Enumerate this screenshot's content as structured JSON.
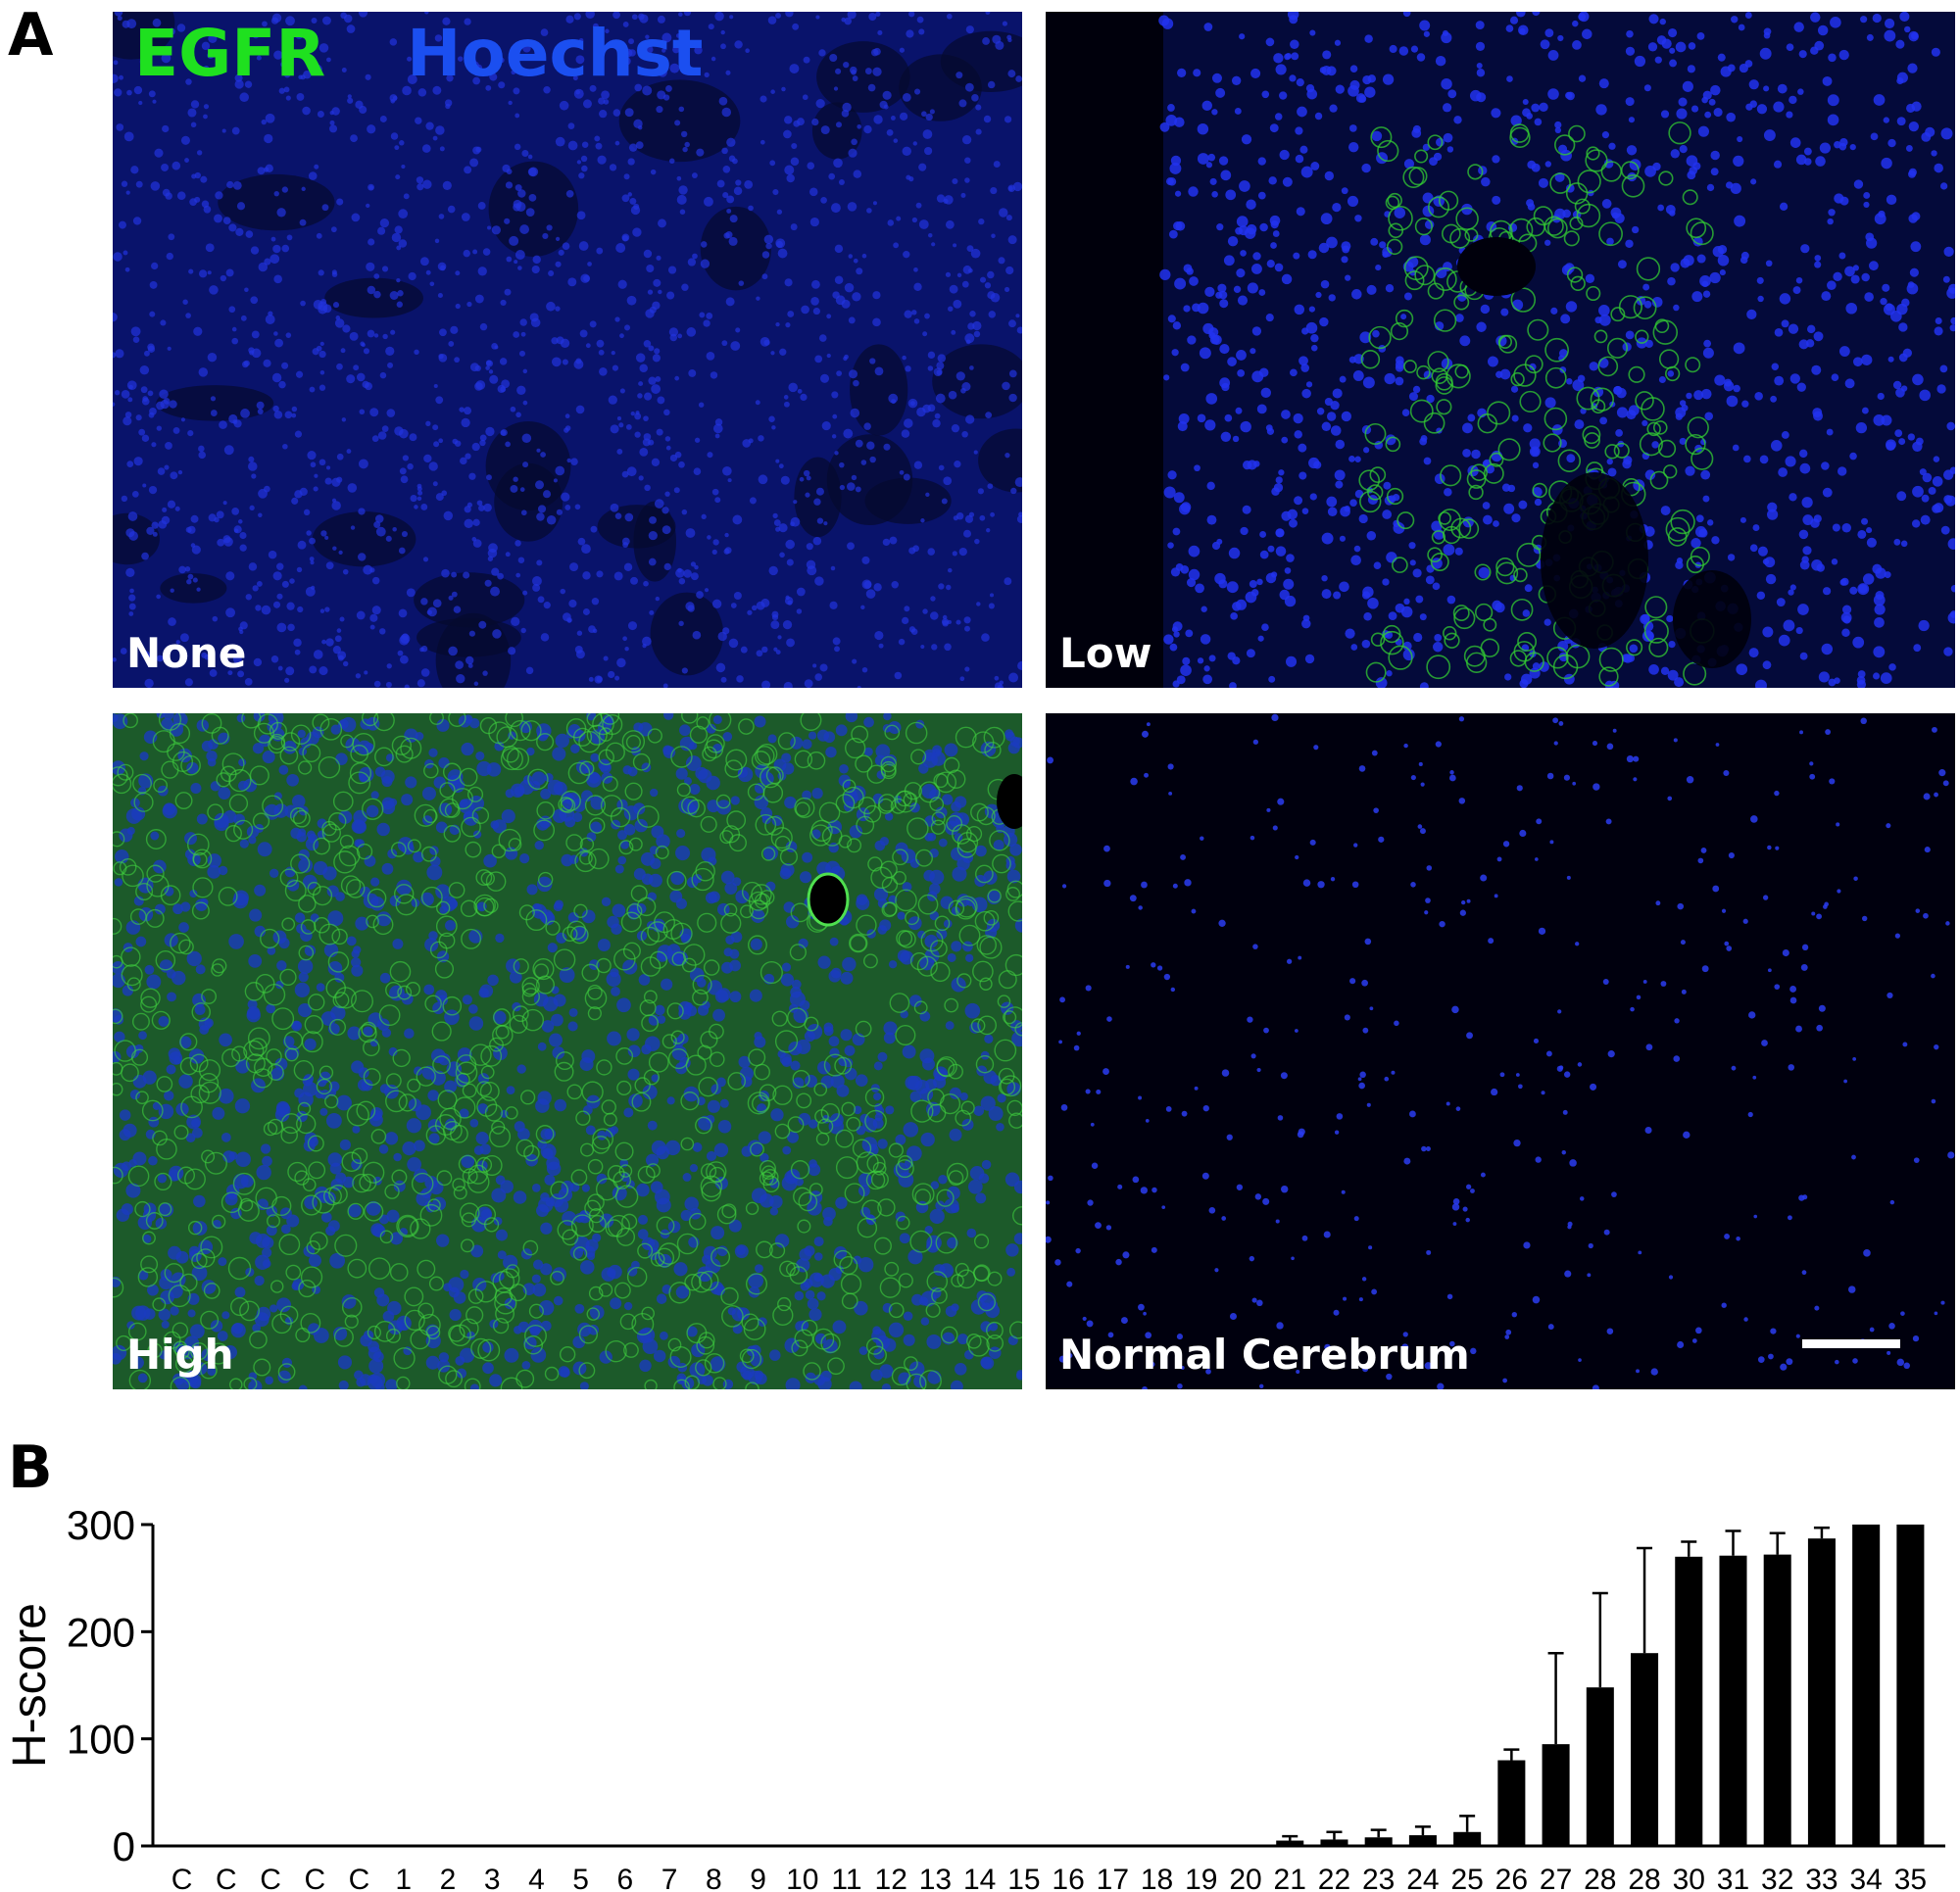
{
  "figure": {
    "panel_a_letter": "A",
    "panel_b_letter": "B",
    "stain_legend": [
      {
        "label": "EGFR",
        "color": "#1fe01f"
      },
      {
        "label": "Hoechst",
        "color": "#1b4ff0"
      }
    ],
    "micrographs": [
      {
        "label": "None",
        "egfr_level": "none"
      },
      {
        "label": "Low",
        "egfr_level": "low"
      },
      {
        "label": "High",
        "egfr_level": "high"
      },
      {
        "label": "Normal Cerebrum",
        "egfr_level": "sparse"
      }
    ]
  },
  "chart_data": {
    "type": "bar",
    "ylabel": "H-score",
    "xlabel": "",
    "ylim": [
      0,
      300
    ],
    "yticks": [
      0,
      100,
      200,
      300
    ],
    "bar_color": "#000000",
    "categories": [
      "C",
      "C",
      "C",
      "C",
      "C",
      "1",
      "2",
      "3",
      "4",
      "5",
      "6",
      "7",
      "8",
      "9",
      "10",
      "11",
      "12",
      "13",
      "14",
      "15",
      "16",
      "17",
      "18",
      "19",
      "20",
      "21",
      "22",
      "23",
      "24",
      "25",
      "26",
      "27",
      "28",
      "28",
      "30",
      "31",
      "32",
      "33",
      "34",
      "35"
    ],
    "values": [
      0,
      0,
      0,
      0,
      0,
      0,
      0,
      0,
      0,
      0,
      0,
      0,
      0,
      0,
      0,
      0,
      0,
      0,
      0,
      0,
      0,
      0,
      0,
      0,
      0,
      5,
      6,
      8,
      10,
      13,
      80,
      95,
      148,
      180,
      270,
      271,
      272,
      287,
      300,
      300
    ],
    "error_upper": [
      0,
      0,
      0,
      0,
      0,
      0,
      0,
      0,
      0,
      0,
      0,
      0,
      0,
      0,
      0,
      0,
      0,
      0,
      0,
      0,
      0,
      0,
      0,
      0,
      0,
      4,
      7,
      7,
      8,
      15,
      10,
      85,
      88,
      98,
      14,
      23,
      20,
      10,
      0,
      0
    ]
  }
}
